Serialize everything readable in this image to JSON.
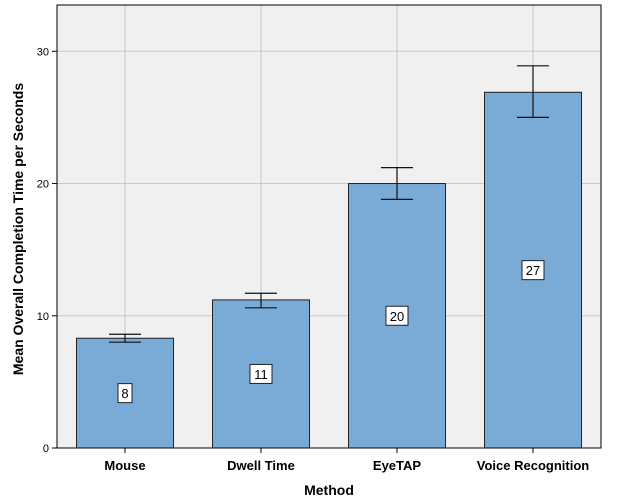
{
  "chart_data": {
    "type": "bar",
    "categories": [
      "Mouse",
      "Dwell Time",
      "EyeTAP",
      "Voice Recognition"
    ],
    "values": [
      8.3,
      11.2,
      20.0,
      26.9
    ],
    "error_low": [
      8.0,
      10.6,
      18.8,
      25.0
    ],
    "error_high": [
      8.6,
      11.7,
      21.2,
      28.9
    ],
    "data_labels": [
      "8",
      "11",
      "20",
      "27"
    ],
    "xlabel": "Method",
    "ylabel": "Mean Overall Completion Time per Seconds",
    "ylim": [
      0,
      33.5
    ],
    "yticks": [
      0,
      10,
      20,
      30
    ],
    "ytick_labels": [
      "0",
      "10",
      "20",
      "30"
    ],
    "grid": true,
    "bar_color": "#7aaad6",
    "plot_background": "#f0f0f0"
  }
}
